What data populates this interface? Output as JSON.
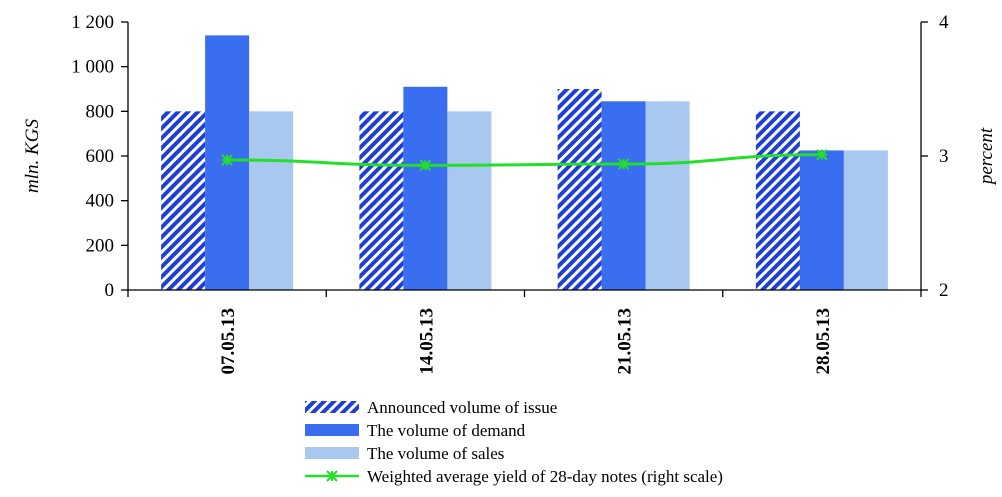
{
  "chart_data": {
    "type": "bar",
    "categories": [
      "07.05.13",
      "14.05.13",
      "21.05.13",
      "28.05.13"
    ],
    "series": [
      {
        "name": "Announced volume of issue",
        "type": "bar",
        "axis": "left",
        "pattern": "diagonal-stripes",
        "color": "#1e3fd6",
        "values": [
          800,
          800,
          900,
          800
        ]
      },
      {
        "name": "The volume of demand",
        "type": "bar",
        "axis": "left",
        "color": "#3a6ef0",
        "values": [
          1140,
          910,
          845,
          625
        ]
      },
      {
        "name": "The volume of sales",
        "type": "bar",
        "axis": "left",
        "color": "#a9c8f0",
        "values": [
          800,
          800,
          845,
          625
        ]
      },
      {
        "name": "Weighted average yield of 28-day notes (right scale)",
        "type": "line",
        "axis": "right",
        "color": "#22e02a",
        "marker": "asterisk",
        "values": [
          2.97,
          2.93,
          2.94,
          3.01
        ]
      }
    ],
    "ylabel": "mln. KGS",
    "y2label": "percent",
    "ylim": [
      0,
      1200
    ],
    "y2lim": [
      2,
      4
    ],
    "yticks": [
      "0",
      "200",
      "400",
      "600",
      "800",
      "1 000",
      "1 200"
    ],
    "y2ticks": [
      "2",
      "3",
      "4"
    ],
    "legend_position": "bottom",
    "grid": false
  }
}
